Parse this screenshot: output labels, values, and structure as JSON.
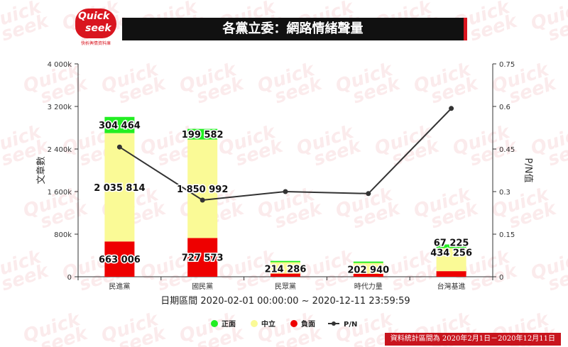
{
  "logo": {
    "line1": "Quick",
    "line2": "seek",
    "tagline": "快析輿情資料庫"
  },
  "title": "各黨立委：網路情緒聲量",
  "watermark_text": "Quick seek",
  "colors": {
    "positive": "#22ee22",
    "neutral": "#fafa96",
    "negative": "#ee0000",
    "pn_line": "#333333",
    "title_bg": "#111111",
    "accent": "#d9151f"
  },
  "chart_data": {
    "type": "bar",
    "stacked": true,
    "categories": [
      "民進黨",
      "國民黨",
      "民眾黨",
      "時代力量",
      "台灣基進"
    ],
    "series": [
      {
        "name": "負面",
        "key": "negative",
        "values": [
          663006,
          727573,
          59000,
          56000,
          105000
        ],
        "labels": [
          "663 006",
          "727 573",
          "",
          "",
          ""
        ]
      },
      {
        "name": "中立",
        "key": "neutral",
        "values": [
          2035814,
          1850992,
          214286,
          202940,
          434256
        ],
        "labels": [
          "2 035 814",
          "1 850 992",
          "214 286",
          "202 940",
          "434 256"
        ]
      },
      {
        "name": "正面",
        "key": "positive",
        "values": [
          304464,
          199582,
          24000,
          26000,
          67225
        ],
        "labels": [
          "304 464",
          "199 582",
          "",
          "",
          "67 225"
        ]
      }
    ],
    "line_series": {
      "name": "P/N",
      "values": [
        0.457,
        0.27,
        0.3,
        0.293,
        0.593
      ]
    },
    "y_axis": {
      "label": "文章數",
      "ticks": [
        "0",
        "800k",
        "1 600k",
        "2 400k",
        "3 200k",
        "4 000k"
      ],
      "min": 0,
      "max": 4000000
    },
    "y2_axis": {
      "label": "P/N值",
      "ticks": [
        "0",
        "0.15",
        "0.3",
        "0.45",
        "0.6",
        "0.75"
      ],
      "min": 0,
      "max": 0.75
    },
    "xlabel": "日期區間 2020-02-01 00:00:00 ~ 2020-12-11 23:59:59",
    "legend": {
      "position": "bottom",
      "items": [
        {
          "name": "正面",
          "key": "positive"
        },
        {
          "name": "中立",
          "key": "neutral"
        },
        {
          "name": "負面",
          "key": "negative"
        },
        {
          "name": "P/N",
          "key": "pn"
        }
      ]
    },
    "grid": false
  },
  "footer": "資料統計區間為 2020年2月1日－2020年12月11日"
}
